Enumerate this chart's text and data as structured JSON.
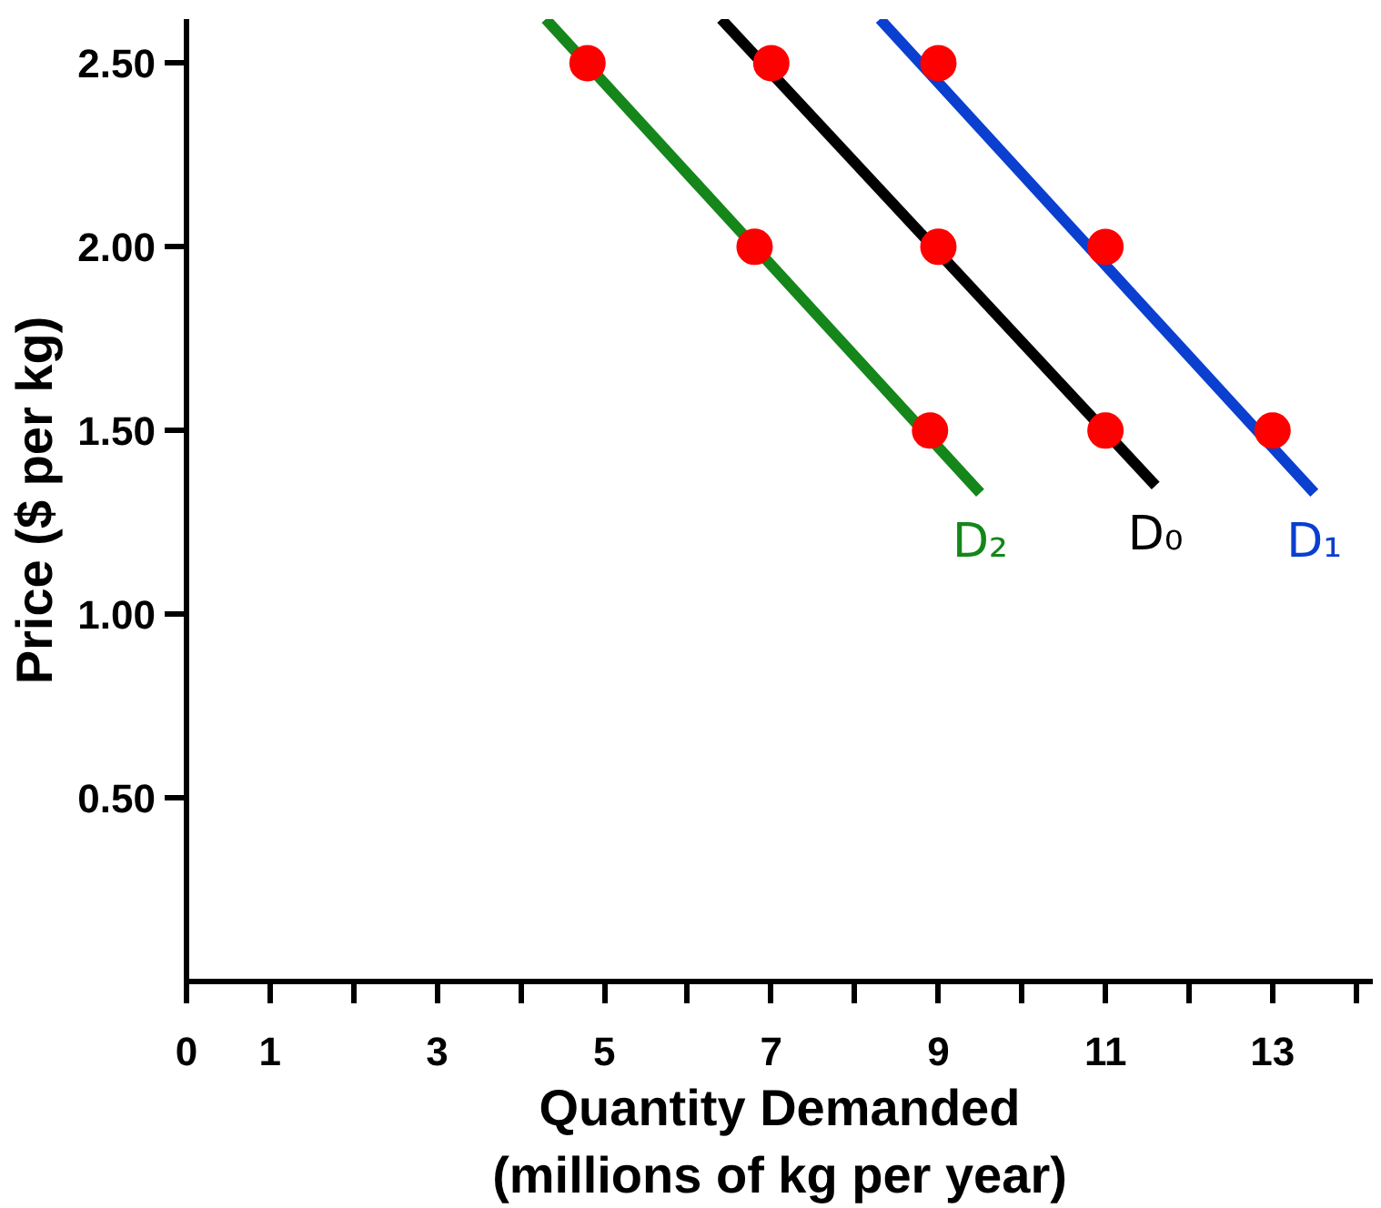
{
  "chart_data": {
    "type": "line",
    "xlabel": "Quantity Demanded\n(millions of kg per year)",
    "ylabel": "Price ($ per kg)",
    "xlim": [
      0,
      14.2
    ],
    "ylim": [
      0,
      2.62
    ],
    "xticks": [
      {
        "value": 0,
        "label": "0"
      },
      1,
      {
        "value": 2,
        "label": null
      },
      3,
      {
        "value": 4,
        "label": null
      },
      5,
      {
        "value": 6,
        "label": null
      },
      7,
      {
        "value": 8,
        "label": null
      },
      9,
      {
        "value": 10,
        "label": null
      },
      11,
      {
        "value": 12,
        "label": null
      },
      13,
      {
        "value": 14,
        "label": null
      }
    ],
    "yticks": [
      {
        "value": 0.5,
        "label": "0.50"
      },
      {
        "value": 1,
        "label": "1.00"
      },
      {
        "value": 1.5,
        "label": "1.50"
      },
      {
        "value": 2,
        "label": "2.00"
      },
      {
        "value": 2.5,
        "label": "2.50"
      }
    ],
    "grid": false,
    "line_style": "solid",
    "marker": "none",
    "series": [
      {
        "name": "D₂",
        "color": "#14861a",
        "x": [
          4.3,
          9.5
        ],
        "values": [
          2.62,
          1.33
        ]
      },
      {
        "name": "D₀",
        "color": "#000000",
        "x": [
          6.4,
          11.6
        ],
        "values": [
          2.62,
          1.35
        ]
      },
      {
        "name": "D₁",
        "color": "#0a3fd0",
        "x": [
          8.3,
          13.5
        ],
        "values": [
          2.62,
          1.33
        ]
      },
      {
        "type": "scatter",
        "color": "#ff0000",
        "marker": "circle",
        "x": [
          4.8,
          6.8,
          8.9,
          7,
          9,
          11,
          9,
          11,
          13
        ],
        "values": [
          2.5,
          2.0,
          1.5,
          2.5,
          2.0,
          1.5,
          2.5,
          2.0,
          1.5
        ]
      }
    ]
  }
}
